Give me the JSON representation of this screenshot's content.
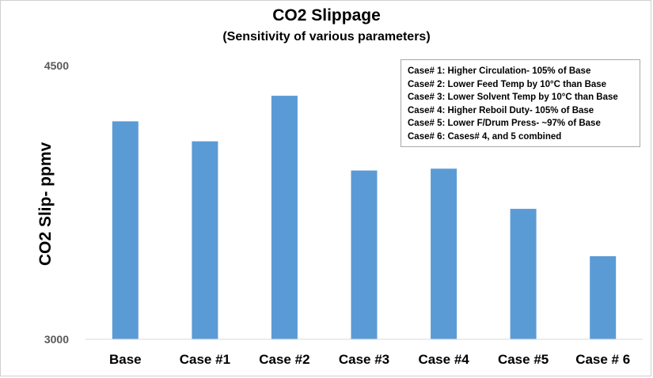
{
  "chart_data": {
    "type": "bar",
    "title": "CO2 Slippage",
    "subtitle": "(Sensitivity of various parameters)",
    "xlabel": "",
    "ylabel": "CO2 Slip- ppmv",
    "ylim": [
      3000,
      4500
    ],
    "yticks": [
      3000,
      4500
    ],
    "grid": false,
    "categories": [
      "Base",
      "Case #1",
      "Case #2",
      "Case #3",
      "Case #4",
      "Case #5",
      "Case # 6"
    ],
    "values": [
      4195,
      4085,
      4335,
      3925,
      3935,
      3715,
      3455
    ],
    "bar_color": "#5b9bd5",
    "legend": {
      "placement": "top-right",
      "entries": [
        "Case# 1:  Higher Circulation- 105% of Base",
        "Case# 2:  Lower Feed Temp by 10°C than Base",
        "Case# 3:  Lower Solvent Temp by 10°C than Base",
        "Case# 4:  Higher Reboil Duty- 105% of Base",
        "Case# 5:  Lower F/Drum Press- ~97% of Base",
        "Case# 6:  Cases# 4, and 5 combined"
      ]
    }
  }
}
